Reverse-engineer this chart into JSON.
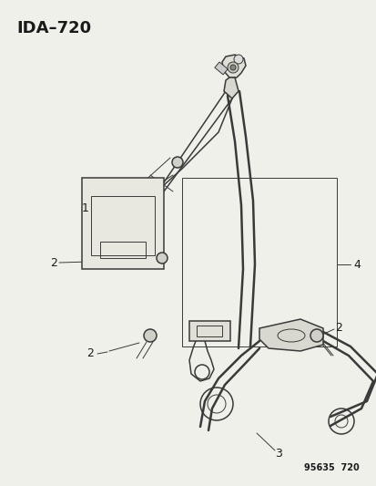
{
  "title": "IDA–720",
  "footer": "95635  720",
  "bg_color": "#f0f0eb",
  "line_color": "#3a3a3a",
  "label_color": "#1a1a1a",
  "fig_w": 4.14,
  "fig_h": 5.33,
  "dpi": 100
}
